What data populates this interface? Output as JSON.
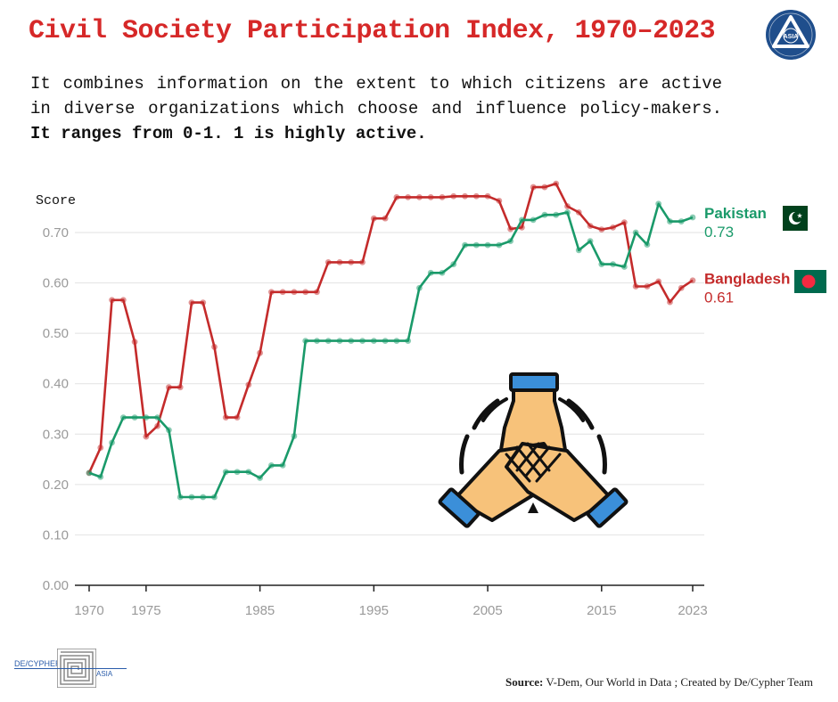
{
  "header": {
    "title": "Civil Society Participation Index, 1970–2023",
    "subtitle_plain": "It combines information on the extent to which citizens are active in diverse organizations which choose and influence policy-makers.",
    "subtitle_bold": "It ranges from 0-1. 1 is highly active.",
    "logo_text": "ASIA"
  },
  "chart_data": {
    "type": "line",
    "ylabel": "Score",
    "xlabel": "",
    "ylim": [
      0,
      0.75
    ],
    "xlim": [
      1970,
      2023
    ],
    "yticks": [
      "0.00",
      "0.10",
      "0.20",
      "0.30",
      "0.40",
      "0.50",
      "0.60",
      "0.70"
    ],
    "ytick_values": [
      0,
      0.1,
      0.2,
      0.3,
      0.4,
      0.5,
      0.6,
      0.7
    ],
    "xticks": [
      "1970",
      "1975",
      "1985",
      "1995",
      "2005",
      "2015",
      "2023"
    ],
    "xtick_values": [
      1970,
      1975,
      1985,
      1995,
      2005,
      2015,
      2023
    ],
    "x": [
      1970,
      1971,
      1972,
      1973,
      1974,
      1975,
      1976,
      1977,
      1978,
      1979,
      1980,
      1981,
      1982,
      1983,
      1984,
      1985,
      1986,
      1987,
      1988,
      1989,
      1990,
      1991,
      1992,
      1993,
      1994,
      1995,
      1996,
      1997,
      1998,
      1999,
      2000,
      2001,
      2002,
      2003,
      2004,
      2005,
      2006,
      2007,
      2008,
      2009,
      2010,
      2011,
      2012,
      2013,
      2014,
      2015,
      2016,
      2017,
      2018,
      2019,
      2020,
      2021,
      2022,
      2023
    ],
    "series": [
      {
        "name": "Pakistan",
        "color": "#1a9a6a",
        "last_label": "0.73",
        "values": [
          0.223,
          0.215,
          0.283,
          0.333,
          0.333,
          0.333,
          0.333,
          0.308,
          0.175,
          0.175,
          0.175,
          0.175,
          0.225,
          0.225,
          0.225,
          0.213,
          0.238,
          0.238,
          0.296,
          0.485,
          0.485,
          0.485,
          0.485,
          0.485,
          0.485,
          0.485,
          0.485,
          0.485,
          0.485,
          0.59,
          0.62,
          0.62,
          0.637,
          0.675,
          0.675,
          0.675,
          0.675,
          0.683,
          0.725,
          0.725,
          0.735,
          0.735,
          0.74,
          0.665,
          0.683,
          0.637,
          0.637,
          0.632,
          0.7,
          0.676,
          0.757,
          0.722,
          0.722,
          0.73
        ]
      },
      {
        "name": "Bangladesh",
        "color": "#c42b2b",
        "last_label": "0.61",
        "values": [
          0.223,
          0.273,
          0.566,
          0.566,
          0.483,
          0.295,
          0.316,
          0.393,
          0.393,
          0.561,
          0.561,
          0.473,
          0.333,
          0.333,
          0.398,
          0.461,
          0.582,
          0.582,
          0.582,
          0.582,
          0.582,
          0.641,
          0.641,
          0.641,
          0.641,
          0.728,
          0.728,
          0.77,
          0.77,
          0.77,
          0.77,
          0.77,
          0.772,
          0.772,
          0.772,
          0.772,
          0.763,
          0.707,
          0.71,
          0.79,
          0.79,
          0.797,
          0.752,
          0.74,
          0.713,
          0.706,
          0.71,
          0.72,
          0.593,
          0.593,
          0.603,
          0.562,
          0.59,
          0.605
        ]
      }
    ]
  },
  "footer": {
    "brand": "DE/CYPHER",
    "brand_sub": "ASIA",
    "source_label": "Source:",
    "source_text": " V-Dem, Our World in Data ; Created by De/Cypher Team"
  }
}
